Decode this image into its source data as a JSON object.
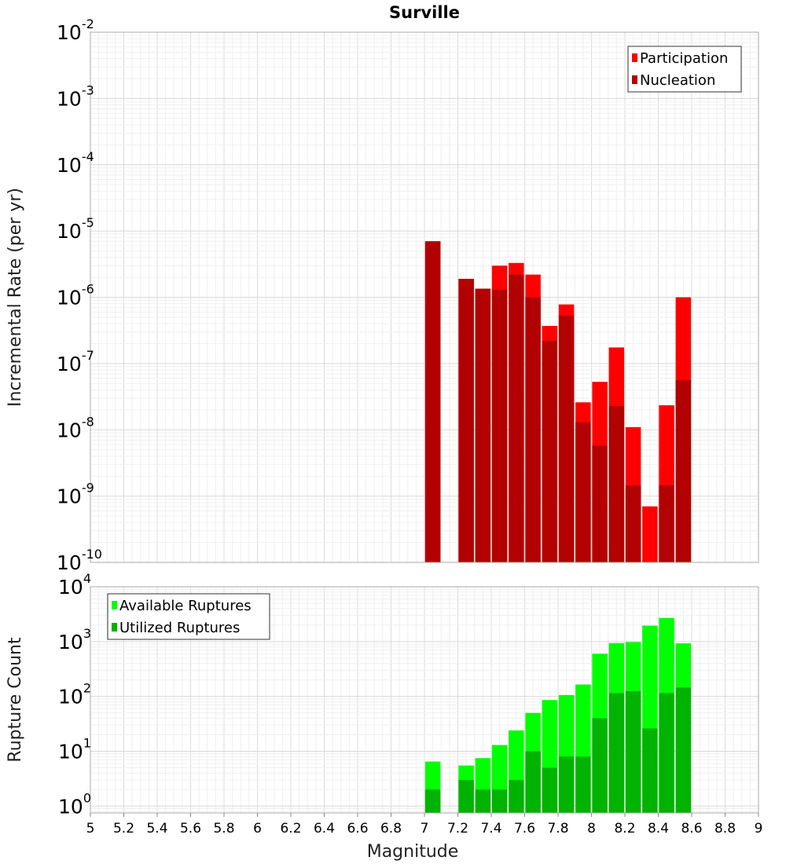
{
  "chart_data": [
    {
      "type": "bar",
      "title": "Surville",
      "xlabel": "",
      "ylabel": "Incremental Rate (per yr)",
      "yscale": "log",
      "ylim": [
        1e-10,
        0.01
      ],
      "xlim": [
        5,
        9
      ],
      "grid": true,
      "legend_placement": "top-right",
      "legend": [
        "Participation",
        "Nucleation"
      ],
      "colors": {
        "Participation": "#ff0000",
        "Nucleation": "#b30000"
      },
      "x": [
        7.05,
        7.25,
        7.35,
        7.45,
        7.55,
        7.65,
        7.75,
        7.85,
        7.95,
        8.05,
        8.15,
        8.25,
        8.35,
        8.45,
        8.55
      ],
      "series": [
        {
          "name": "Participation",
          "values": [
            7e-06,
            1.9e-06,
            1.35e-06,
            3e-06,
            3.3e-06,
            2.2e-06,
            3.7e-07,
            7.8e-07,
            2.6e-08,
            5.3e-08,
            1.75e-07,
            1.1e-08,
            7e-10,
            2.35e-08,
            1e-06
          ]
        },
        {
          "name": "Nucleation",
          "values": [
            7e-06,
            1.9e-06,
            1.35e-06,
            1.3e-06,
            2.2e-06,
            1e-06,
            2.2e-07,
            5.3e-07,
            1.3e-08,
            5.8e-09,
            2.3e-08,
            1.45e-09,
            null,
            1.45e-09,
            5.6e-08
          ]
        }
      ],
      "yticks": [
        {
          "base": "10",
          "exp": "-10"
        },
        {
          "base": "10",
          "exp": "-9"
        },
        {
          "base": "10",
          "exp": "-8"
        },
        {
          "base": "10",
          "exp": "-7"
        },
        {
          "base": "10",
          "exp": "-6"
        },
        {
          "base": "10",
          "exp": "-5"
        },
        {
          "base": "10",
          "exp": "-4"
        },
        {
          "base": "10",
          "exp": "-3"
        },
        {
          "base": "10",
          "exp": "-2"
        }
      ]
    },
    {
      "type": "bar",
      "title": "",
      "xlabel": "Magnitude",
      "ylabel": "Rupture Count",
      "yscale": "log",
      "ylim": [
        0.75,
        10000
      ],
      "xlim": [
        5,
        9
      ],
      "grid": true,
      "legend_placement": "top-left",
      "legend": [
        "Available Ruptures",
        "Utilized Ruptures"
      ],
      "colors": {
        "Available Ruptures": "#00ff00",
        "Utilized Ruptures": "#00b300"
      },
      "x": [
        7.05,
        7.25,
        7.35,
        7.45,
        7.55,
        7.65,
        7.75,
        7.85,
        7.95,
        8.05,
        8.15,
        8.25,
        8.35,
        8.45,
        8.55
      ],
      "series": [
        {
          "name": "Available Ruptures",
          "values": [
            6.5,
            5.5,
            7.5,
            13,
            24,
            50,
            86,
            106,
            165,
            600,
            940,
            980,
            1950,
            2700,
            930
          ]
        },
        {
          "name": "Utilized Ruptures",
          "values": [
            2,
            3,
            2,
            2,
            3,
            10,
            5,
            8,
            8,
            40,
            115,
            125,
            26,
            115,
            145
          ]
        }
      ],
      "yticks": [
        {
          "base": "10",
          "exp": "0"
        },
        {
          "base": "10",
          "exp": "1"
        },
        {
          "base": "10",
          "exp": "2"
        },
        {
          "base": "10",
          "exp": "3"
        },
        {
          "base": "10",
          "exp": "4"
        }
      ],
      "xticks": [
        "5",
        "5.2",
        "5.4",
        "5.6",
        "5.8",
        "6",
        "6.2",
        "6.4",
        "6.6",
        "6.8",
        "7",
        "7.2",
        "7.4",
        "7.6",
        "7.8",
        "8",
        "8.2",
        "8.4",
        "8.6",
        "8.8",
        "9"
      ]
    }
  ]
}
